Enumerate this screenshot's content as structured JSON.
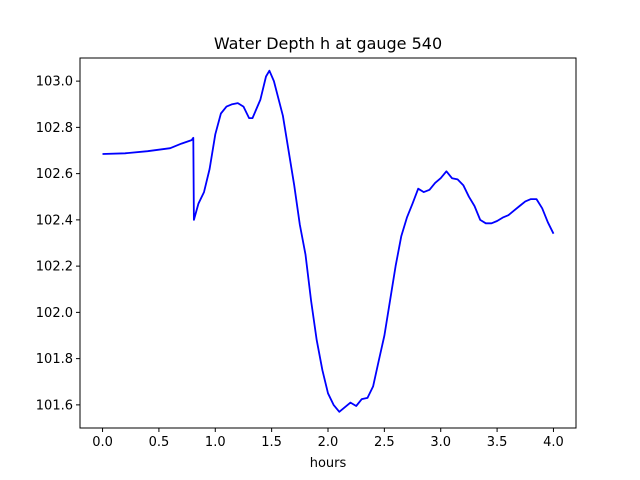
{
  "chart_data": {
    "type": "line",
    "title": "Water Depth h at gauge 540",
    "xlabel": "hours",
    "ylabel": "",
    "xlim": [
      -0.2,
      4.2
    ],
    "ylim": [
      101.5,
      103.1
    ],
    "xticks": [
      "0.0",
      "0.5",
      "1.0",
      "1.5",
      "2.0",
      "2.5",
      "3.0",
      "3.5",
      "4.0"
    ],
    "yticks": [
      "101.6",
      "101.8",
      "102.0",
      "102.2",
      "102.4",
      "102.6",
      "102.8",
      "103.0"
    ],
    "grid": false,
    "series": [
      {
        "color": "#0000ff",
        "points": [
          [
            0.0,
            102.685
          ],
          [
            0.2,
            102.688
          ],
          [
            0.4,
            102.697
          ],
          [
            0.6,
            102.71
          ],
          [
            0.7,
            102.73
          ],
          [
            0.79,
            102.745
          ],
          [
            0.805,
            102.755
          ],
          [
            0.81,
            102.4
          ],
          [
            0.85,
            102.47
          ],
          [
            0.9,
            102.52
          ],
          [
            0.95,
            102.62
          ],
          [
            1.0,
            102.77
          ],
          [
            1.05,
            102.86
          ],
          [
            1.1,
            102.89
          ],
          [
            1.15,
            102.9
          ],
          [
            1.2,
            102.905
          ],
          [
            1.25,
            102.89
          ],
          [
            1.3,
            102.84
          ],
          [
            1.33,
            102.84
          ],
          [
            1.4,
            102.92
          ],
          [
            1.45,
            103.02
          ],
          [
            1.48,
            103.045
          ],
          [
            1.52,
            103.0
          ],
          [
            1.6,
            102.85
          ],
          [
            1.7,
            102.55
          ],
          [
            1.75,
            102.38
          ],
          [
            1.8,
            102.25
          ],
          [
            1.85,
            102.05
          ],
          [
            1.9,
            101.88
          ],
          [
            1.95,
            101.75
          ],
          [
            2.0,
            101.65
          ],
          [
            2.05,
            101.6
          ],
          [
            2.1,
            101.57
          ],
          [
            2.15,
            101.59
          ],
          [
            2.2,
            101.61
          ],
          [
            2.25,
            101.595
          ],
          [
            2.3,
            101.625
          ],
          [
            2.35,
            101.63
          ],
          [
            2.4,
            101.68
          ],
          [
            2.45,
            101.79
          ],
          [
            2.5,
            101.9
          ],
          [
            2.55,
            102.05
          ],
          [
            2.6,
            102.2
          ],
          [
            2.65,
            102.33
          ],
          [
            2.7,
            102.41
          ],
          [
            2.75,
            102.47
          ],
          [
            2.8,
            102.535
          ],
          [
            2.85,
            102.52
          ],
          [
            2.9,
            102.53
          ],
          [
            2.95,
            102.56
          ],
          [
            3.0,
            102.58
          ],
          [
            3.05,
            102.61
          ],
          [
            3.1,
            102.58
          ],
          [
            3.15,
            102.575
          ],
          [
            3.2,
            102.55
          ],
          [
            3.25,
            102.5
          ],
          [
            3.3,
            102.46
          ],
          [
            3.35,
            102.4
          ],
          [
            3.4,
            102.385
          ],
          [
            3.45,
            102.385
          ],
          [
            3.5,
            102.395
          ],
          [
            3.55,
            102.41
          ],
          [
            3.6,
            102.42
          ],
          [
            3.65,
            102.44
          ],
          [
            3.7,
            102.46
          ],
          [
            3.75,
            102.48
          ],
          [
            3.8,
            102.49
          ],
          [
            3.85,
            102.49
          ],
          [
            3.9,
            102.45
          ],
          [
            3.95,
            102.39
          ],
          [
            4.0,
            102.34
          ]
        ]
      }
    ]
  }
}
